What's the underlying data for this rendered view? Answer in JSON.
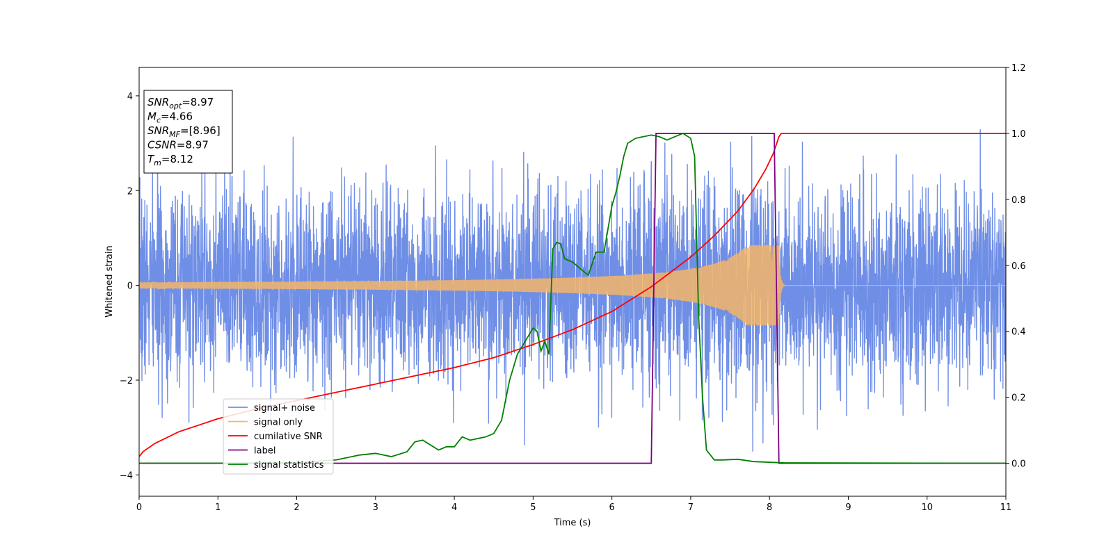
{
  "chart_data": {
    "type": "line",
    "xlabel": "Time (s)",
    "ylabel": "Whitened strain",
    "xlim": [
      0,
      11
    ],
    "ylim": [
      -4.45,
      4.6
    ],
    "y2lim": [
      -0.1,
      1.2
    ],
    "xticks": [
      0,
      1,
      2,
      3,
      4,
      5,
      6,
      7,
      8,
      9,
      10,
      11
    ],
    "yticks": [
      -4,
      -2,
      0,
      2,
      4
    ],
    "y2ticks": [
      "0.0",
      "0.2",
      "0.4",
      "0.6",
      "0.8",
      "1.0",
      "1.2"
    ],
    "grid": false,
    "legend_placement": "lower-left",
    "annotation": {
      "lines": [
        {
          "base": "SNR",
          "sub": "opt",
          "value": "=8.97"
        },
        {
          "base": "M",
          "sub": "c",
          "value": "=4.66"
        },
        {
          "base": "SNR",
          "sub": "MF",
          "value": "=[8.96]"
        },
        {
          "base": "CSNR",
          "sub": "",
          "value": "=8.97"
        },
        {
          "base": "T",
          "sub": "m",
          "value": "=8.12"
        }
      ]
    },
    "noise": {
      "sigma": 1.0,
      "seed": 7,
      "rate": 400
    },
    "chirp": {
      "t_start": 0.0,
      "t_merge": 8.12,
      "amp_start": 0.06,
      "amp_peak": 0.85
    },
    "series": [
      {
        "name": "signal+ noise",
        "color": "#6f8ee6",
        "axis": "left"
      },
      {
        "name": "signal only",
        "color": "#f5b567",
        "axis": "left"
      },
      {
        "name": "cumilative SNR",
        "color": "#ff0000",
        "axis": "right",
        "x": [
          0,
          0.05,
          0.2,
          0.5,
          1,
          1.5,
          2,
          2.5,
          3,
          3.5,
          4,
          4.5,
          5,
          5.5,
          6,
          6.5,
          7,
          7.3,
          7.6,
          7.8,
          7.95,
          8.05,
          8.12,
          8.15,
          11
        ],
        "y": [
          0.02,
          0.035,
          0.06,
          0.095,
          0.135,
          0.165,
          0.19,
          0.215,
          0.24,
          0.265,
          0.29,
          0.32,
          0.36,
          0.405,
          0.46,
          0.535,
          0.625,
          0.69,
          0.765,
          0.83,
          0.89,
          0.94,
          0.99,
          1.0,
          1.0
        ]
      },
      {
        "name": "label",
        "color": "#800080",
        "axis": "right",
        "x": [
          0,
          6.5,
          6.56,
          8.06,
          8.12,
          11
        ],
        "y": [
          0,
          0,
          1,
          1,
          0,
          0
        ]
      },
      {
        "name": "signal statistics",
        "color": "#008000",
        "axis": "right",
        "x": [
          0,
          1,
          2,
          2.5,
          2.8,
          3.0,
          3.2,
          3.4,
          3.5,
          3.6,
          3.7,
          3.8,
          3.9,
          4.0,
          4.1,
          4.2,
          4.3,
          4.4,
          4.5,
          4.6,
          4.7,
          4.8,
          4.9,
          5.0,
          5.05,
          5.1,
          5.15,
          5.2,
          5.25,
          5.3,
          5.35,
          5.4,
          5.5,
          5.6,
          5.7,
          5.8,
          5.9,
          6.0,
          6.05,
          6.1,
          6.15,
          6.2,
          6.3,
          6.4,
          6.5,
          6.6,
          6.7,
          6.8,
          6.9,
          7.0,
          7.05,
          7.1,
          7.15,
          7.2,
          7.3,
          7.4,
          7.6,
          7.8,
          8.2,
          11
        ],
        "y": [
          0,
          0.0,
          0.002,
          0.01,
          0.025,
          0.03,
          0.02,
          0.035,
          0.065,
          0.07,
          0.055,
          0.04,
          0.05,
          0.05,
          0.08,
          0.07,
          0.075,
          0.08,
          0.09,
          0.13,
          0.25,
          0.33,
          0.37,
          0.41,
          0.4,
          0.34,
          0.37,
          0.33,
          0.65,
          0.67,
          0.665,
          0.62,
          0.61,
          0.59,
          0.57,
          0.64,
          0.64,
          0.78,
          0.82,
          0.87,
          0.93,
          0.97,
          0.985,
          0.99,
          0.995,
          0.99,
          0.98,
          0.99,
          1.0,
          0.985,
          0.93,
          0.45,
          0.2,
          0.04,
          0.01,
          0.01,
          0.012,
          0.005,
          0.001,
          0.0
        ]
      }
    ]
  }
}
